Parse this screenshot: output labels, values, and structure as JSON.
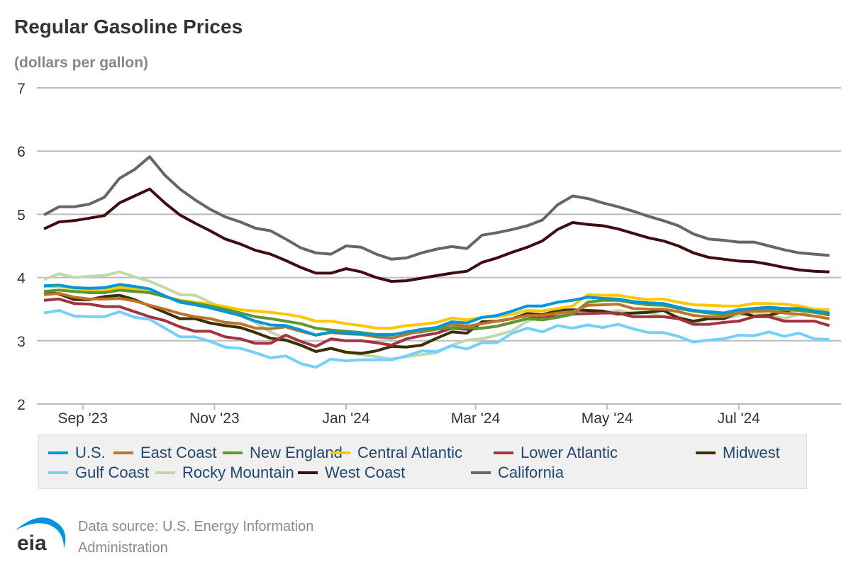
{
  "header": {
    "title": "Regular Gasoline Prices",
    "subtitle": "(dollars per gallon)"
  },
  "footer": {
    "source_line1": "Data source: U.S. Energy Information",
    "source_line2": "Administration",
    "logo_text": "eia"
  },
  "chart_data": {
    "type": "line",
    "title": "Regular Gasoline Prices",
    "ylabel": "(dollars per gallon)",
    "ylim": [
      2,
      7
    ],
    "yticks": [
      "2",
      "3",
      "4",
      "5",
      "6",
      "7"
    ],
    "xticks": [
      {
        "date": "2023-09-01",
        "label": "Sep '23"
      },
      {
        "date": "2023-11-01",
        "label": "Nov '23"
      },
      {
        "date": "2024-01-01",
        "label": "Jan '24"
      },
      {
        "date": "2024-03-01",
        "label": "Mar '24"
      },
      {
        "date": "2024-05-01",
        "label": "May '24"
      },
      {
        "date": "2024-07-01",
        "label": "Jul '24"
      }
    ],
    "grid": true,
    "legend_position": "bottom",
    "x": [
      "2023-08-14",
      "2023-08-21",
      "2023-08-28",
      "2023-09-04",
      "2023-09-11",
      "2023-09-18",
      "2023-09-25",
      "2023-10-02",
      "2023-10-09",
      "2023-10-16",
      "2023-10-23",
      "2023-10-30",
      "2023-11-06",
      "2023-11-13",
      "2023-11-20",
      "2023-11-27",
      "2023-12-04",
      "2023-12-11",
      "2023-12-18",
      "2023-12-25",
      "2024-01-01",
      "2024-01-08",
      "2024-01-15",
      "2024-01-22",
      "2024-01-29",
      "2024-02-05",
      "2024-02-12",
      "2024-02-19",
      "2024-02-26",
      "2024-03-04",
      "2024-03-11",
      "2024-03-18",
      "2024-03-25",
      "2024-04-01",
      "2024-04-08",
      "2024-04-15",
      "2024-04-22",
      "2024-04-29",
      "2024-05-06",
      "2024-05-13",
      "2024-05-20",
      "2024-05-27",
      "2024-06-03",
      "2024-06-10",
      "2024-06-17",
      "2024-06-24",
      "2024-07-01",
      "2024-07-08",
      "2024-07-15",
      "2024-07-22",
      "2024-07-29",
      "2024-08-05",
      "2024-08-12"
    ],
    "series": [
      {
        "name": "U.S.",
        "color": "#0096d7",
        "values": [
          3.87,
          3.88,
          3.84,
          3.83,
          3.84,
          3.89,
          3.86,
          3.82,
          3.71,
          3.61,
          3.57,
          3.52,
          3.46,
          3.4,
          3.31,
          3.25,
          3.24,
          3.17,
          3.09,
          3.14,
          3.12,
          3.11,
          3.09,
          3.09,
          3.14,
          3.18,
          3.21,
          3.3,
          3.28,
          3.37,
          3.4,
          3.47,
          3.55,
          3.55,
          3.61,
          3.64,
          3.69,
          3.67,
          3.66,
          3.62,
          3.6,
          3.59,
          3.53,
          3.48,
          3.46,
          3.44,
          3.49,
          3.51,
          3.53,
          3.51,
          3.51,
          3.47,
          3.44
        ]
      },
      {
        "name": "East Coast",
        "color": "#bd732a",
        "values": [
          3.73,
          3.75,
          3.69,
          3.66,
          3.66,
          3.67,
          3.63,
          3.56,
          3.5,
          3.43,
          3.38,
          3.35,
          3.29,
          3.27,
          3.2,
          3.19,
          3.22,
          3.15,
          3.09,
          3.13,
          3.11,
          3.1,
          3.06,
          3.04,
          3.1,
          3.16,
          3.21,
          3.26,
          3.23,
          3.27,
          3.31,
          3.35,
          3.4,
          3.4,
          3.44,
          3.46,
          3.56,
          3.57,
          3.58,
          3.51,
          3.5,
          3.5,
          3.46,
          3.4,
          3.38,
          3.38,
          3.44,
          3.47,
          3.47,
          3.44,
          3.42,
          3.39,
          3.35
        ]
      },
      {
        "name": "New England",
        "color": "#5d9732",
        "values": [
          3.78,
          3.8,
          3.78,
          3.76,
          3.76,
          3.8,
          3.78,
          3.76,
          3.7,
          3.63,
          3.59,
          3.55,
          3.5,
          3.44,
          3.38,
          3.35,
          3.31,
          3.27,
          3.2,
          3.17,
          3.15,
          3.13,
          3.1,
          3.1,
          3.12,
          3.14,
          3.18,
          3.21,
          3.21,
          3.2,
          3.23,
          3.29,
          3.35,
          3.33,
          3.37,
          3.42,
          3.61,
          3.64,
          3.64,
          3.6,
          3.57,
          3.56,
          3.51,
          3.47,
          3.44,
          3.42,
          3.48,
          3.51,
          3.51,
          3.49,
          3.48,
          3.45,
          3.42
        ]
      },
      {
        "name": "Central Atlantic",
        "color": "#ffc702",
        "values": [
          3.86,
          3.86,
          3.83,
          3.8,
          3.8,
          3.85,
          3.82,
          3.77,
          3.7,
          3.64,
          3.61,
          3.58,
          3.54,
          3.49,
          3.47,
          3.45,
          3.42,
          3.38,
          3.31,
          3.31,
          3.27,
          3.24,
          3.2,
          3.2,
          3.24,
          3.26,
          3.29,
          3.36,
          3.33,
          3.37,
          3.38,
          3.42,
          3.48,
          3.47,
          3.51,
          3.55,
          3.73,
          3.72,
          3.72,
          3.68,
          3.65,
          3.66,
          3.61,
          3.57,
          3.56,
          3.55,
          3.55,
          3.59,
          3.59,
          3.58,
          3.55,
          3.5,
          3.49
        ]
      },
      {
        "name": "Lower Atlantic",
        "color": "#a33340",
        "values": [
          3.64,
          3.66,
          3.59,
          3.58,
          3.54,
          3.54,
          3.46,
          3.38,
          3.32,
          3.22,
          3.15,
          3.15,
          3.06,
          3.03,
          2.96,
          2.96,
          3.09,
          2.99,
          2.91,
          3.03,
          3.0,
          3.0,
          2.97,
          2.93,
          3.03,
          3.08,
          3.12,
          3.2,
          3.18,
          3.2,
          3.23,
          3.29,
          3.35,
          3.38,
          3.38,
          3.42,
          3.43,
          3.44,
          3.44,
          3.38,
          3.38,
          3.38,
          3.35,
          3.26,
          3.26,
          3.29,
          3.31,
          3.38,
          3.38,
          3.31,
          3.31,
          3.31,
          3.24
        ]
      },
      {
        "name": "Midwest",
        "color": "#3b2f03",
        "values": [
          3.78,
          3.74,
          3.65,
          3.65,
          3.7,
          3.72,
          3.65,
          3.55,
          3.45,
          3.35,
          3.35,
          3.28,
          3.24,
          3.21,
          3.13,
          3.04,
          3.01,
          2.93,
          2.83,
          2.88,
          2.82,
          2.8,
          2.84,
          2.91,
          2.9,
          2.93,
          3.04,
          3.14,
          3.12,
          3.3,
          3.31,
          3.35,
          3.43,
          3.41,
          3.48,
          3.49,
          3.48,
          3.47,
          3.42,
          3.44,
          3.45,
          3.48,
          3.36,
          3.31,
          3.35,
          3.35,
          3.45,
          3.39,
          3.4,
          3.47,
          3.5,
          3.45,
          3.41
        ]
      },
      {
        "name": "Gulf Coast",
        "color": "#76d0ff",
        "values": [
          3.44,
          3.48,
          3.39,
          3.38,
          3.38,
          3.46,
          3.37,
          3.34,
          3.2,
          3.06,
          3.06,
          2.99,
          2.9,
          2.88,
          2.81,
          2.73,
          2.76,
          2.64,
          2.58,
          2.71,
          2.68,
          2.7,
          2.7,
          2.7,
          2.76,
          2.84,
          2.83,
          2.92,
          2.87,
          2.97,
          2.97,
          3.12,
          3.2,
          3.14,
          3.24,
          3.2,
          3.25,
          3.21,
          3.26,
          3.19,
          3.13,
          3.13,
          3.07,
          2.98,
          3.01,
          3.03,
          3.09,
          3.08,
          3.14,
          3.07,
          3.12,
          3.03,
          3.02
        ]
      },
      {
        "name": "Rocky Mountain",
        "color": "#bfd9ab",
        "values": [
          3.97,
          4.06,
          4.0,
          4.02,
          4.03,
          4.09,
          4.01,
          3.94,
          3.84,
          3.73,
          3.72,
          3.61,
          3.5,
          3.4,
          3.29,
          3.14,
          3.03,
          2.93,
          2.83,
          2.88,
          2.81,
          2.78,
          2.75,
          2.71,
          2.75,
          2.78,
          2.81,
          2.93,
          3.01,
          3.03,
          3.09,
          3.16,
          3.31,
          3.38,
          3.4,
          3.45,
          3.48,
          3.44,
          3.48,
          3.43,
          3.45,
          3.38,
          3.38,
          3.29,
          3.35,
          3.35,
          3.4,
          3.45,
          3.41,
          3.35,
          3.42,
          3.46,
          3.44
        ]
      },
      {
        "name": "West Coast",
        "color": "#3f0c10",
        "values": [
          4.77,
          4.88,
          4.9,
          4.94,
          4.98,
          5.18,
          5.29,
          5.4,
          5.18,
          4.99,
          4.86,
          4.74,
          4.61,
          4.53,
          4.43,
          4.37,
          4.27,
          4.16,
          4.07,
          4.07,
          4.14,
          4.09,
          4.0,
          3.94,
          3.95,
          3.99,
          4.03,
          4.07,
          4.1,
          4.24,
          4.31,
          4.4,
          4.48,
          4.58,
          4.76,
          4.87,
          4.84,
          4.82,
          4.77,
          4.7,
          4.63,
          4.58,
          4.5,
          4.39,
          4.32,
          4.29,
          4.26,
          4.25,
          4.21,
          4.16,
          4.12,
          4.1,
          4.09
        ]
      },
      {
        "name": "California",
        "color": "#666666",
        "values": [
          4.99,
          5.12,
          5.12,
          5.16,
          5.27,
          5.57,
          5.71,
          5.91,
          5.62,
          5.4,
          5.23,
          5.08,
          4.96,
          4.88,
          4.78,
          4.74,
          4.61,
          4.47,
          4.39,
          4.37,
          4.5,
          4.48,
          4.37,
          4.29,
          4.31,
          4.39,
          4.45,
          4.49,
          4.46,
          4.67,
          4.71,
          4.76,
          4.82,
          4.91,
          5.15,
          5.29,
          5.25,
          5.18,
          5.12,
          5.05,
          4.97,
          4.9,
          4.82,
          4.69,
          4.61,
          4.59,
          4.56,
          4.56,
          4.5,
          4.44,
          4.39,
          4.37,
          4.35
        ]
      }
    ]
  }
}
